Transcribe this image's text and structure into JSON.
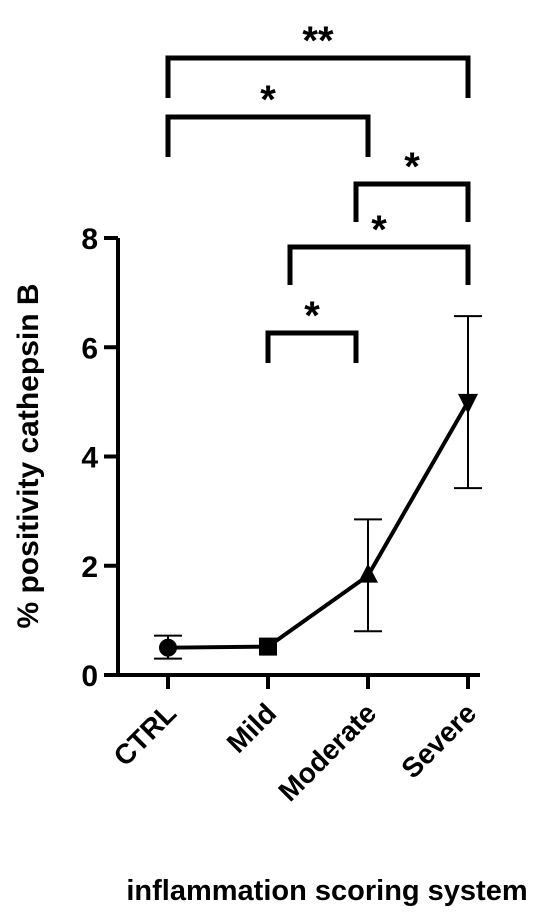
{
  "chart_data": {
    "type": "line",
    "categories": [
      "CTRL",
      "Mild",
      "Moderate",
      "Severe"
    ],
    "series": [
      {
        "values": [
          0.5,
          0.52,
          1.82,
          5.0
        ],
        "error_upper": [
          0.72,
          0.52,
          2.85,
          6.57
        ],
        "error_lower": [
          0.3,
          0.52,
          0.8,
          3.42
        ],
        "markers": [
          "circle",
          "square",
          "triangle-up",
          "triangle-down"
        ]
      }
    ],
    "xlabel": "inflammation scoring system",
    "ylabel": "% positivity cathepsin B",
    "ylim": [
      0,
      8
    ],
    "yticks": [
      0,
      2,
      4,
      6,
      8
    ],
    "grid": false,
    "significance": [
      {
        "from": 0,
        "to": 3,
        "label": "**"
      },
      {
        "from": 0,
        "to": 2,
        "label": "*"
      },
      {
        "from": 2,
        "to": 3,
        "label": "*"
      },
      {
        "from": 1,
        "to": 3,
        "label": "*"
      },
      {
        "from": 1,
        "to": 2,
        "label": "*"
      }
    ],
    "colors": {
      "line": "#000000",
      "text": "#000000",
      "background": "#ffffff"
    }
  }
}
